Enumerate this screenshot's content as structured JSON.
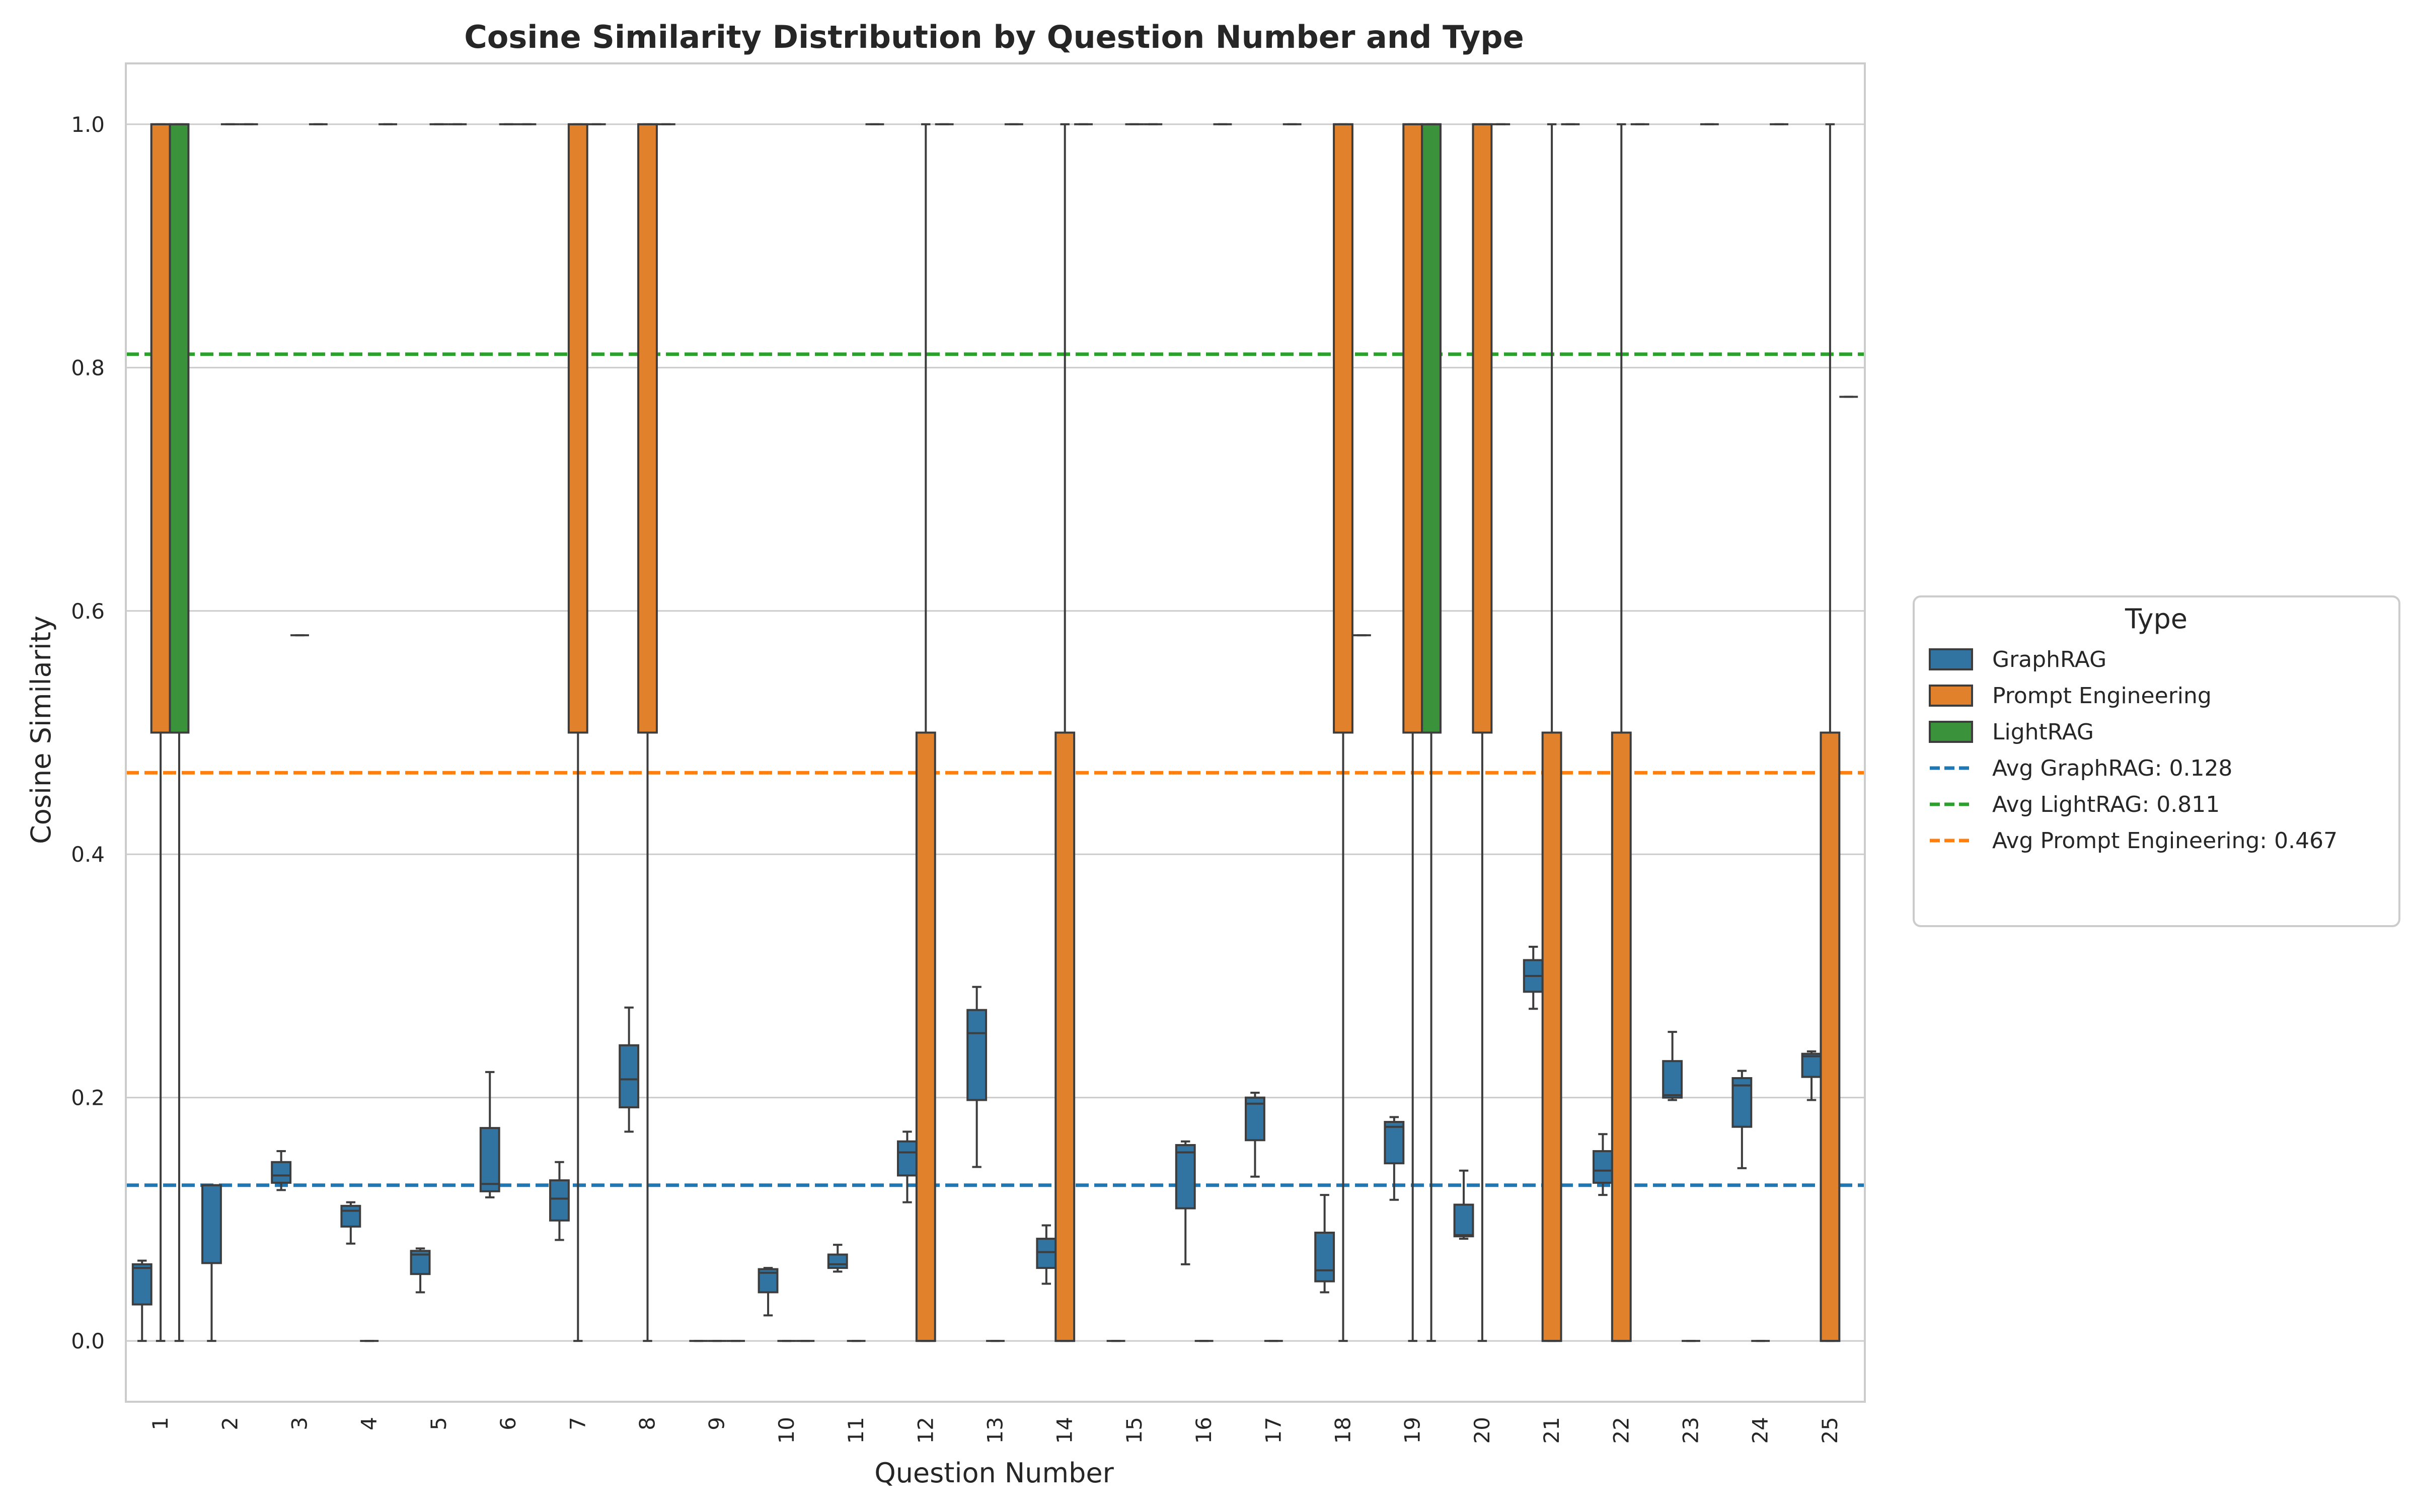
{
  "chart_data": {
    "type": "box",
    "title": "Cosine Similarity Distribution by Question Number and Type",
    "xlabel": "Question Number",
    "ylabel": "Cosine Similarity",
    "ylim": [
      -0.05,
      1.05
    ],
    "yticks": [
      0.0,
      0.2,
      0.4,
      0.6,
      0.8,
      1.0
    ],
    "ytick_labels": [
      "0.0",
      "0.2",
      "0.4",
      "0.6",
      "0.8",
      "1.0"
    ],
    "grid": true,
    "legend_placement": "right, outside plot area",
    "legend_title": "Type",
    "categories": [
      "1",
      "2",
      "3",
      "4",
      "5",
      "6",
      "7",
      "8",
      "9",
      "10",
      "11",
      "12",
      "13",
      "14",
      "15",
      "16",
      "17",
      "18",
      "19",
      "20",
      "21",
      "22",
      "23",
      "24",
      "25"
    ],
    "series": [
      {
        "name": "GraphRAG",
        "color": "#3274a1",
        "boxes": [
          {
            "whislo": 0.0,
            "q1": 0.03,
            "med": 0.06,
            "q3": 0.063,
            "whishi": 0.066
          },
          {
            "whislo": 0.0,
            "q1": 0.064,
            "med": 0.128,
            "q3": 0.128,
            "whishi": 0.128
          },
          {
            "whislo": 0.124,
            "q1": 0.13,
            "med": 0.136,
            "q3": 0.147,
            "whishi": 0.156
          },
          {
            "whislo": 0.08,
            "q1": 0.094,
            "med": 0.107,
            "q3": 0.111,
            "whishi": 0.114
          },
          {
            "whislo": 0.04,
            "q1": 0.055,
            "med": 0.071,
            "q3": 0.074,
            "whishi": 0.076
          },
          {
            "whislo": 0.118,
            "q1": 0.123,
            "med": 0.129,
            "q3": 0.175,
            "whishi": 0.221
          },
          {
            "whislo": 0.083,
            "q1": 0.099,
            "med": 0.117,
            "q3": 0.132,
            "whishi": 0.147
          },
          {
            "whislo": 0.172,
            "q1": 0.192,
            "med": 0.215,
            "q3": 0.243,
            "whishi": 0.274
          },
          {
            "whislo": 0.0,
            "q1": 0.0,
            "med": 0.0,
            "q3": 0.0,
            "whishi": 0.0
          },
          {
            "whislo": 0.021,
            "q1": 0.04,
            "med": 0.056,
            "q3": 0.059,
            "whishi": 0.06
          },
          {
            "whislo": 0.057,
            "q1": 0.06,
            "med": 0.063,
            "q3": 0.071,
            "whishi": 0.079
          },
          {
            "whislo": 0.114,
            "q1": 0.136,
            "med": 0.155,
            "q3": 0.164,
            "whishi": 0.172
          },
          {
            "whislo": 0.143,
            "q1": 0.198,
            "med": 0.253,
            "q3": 0.272,
            "whishi": 0.291
          },
          {
            "whislo": 0.047,
            "q1": 0.06,
            "med": 0.073,
            "q3": 0.084,
            "whishi": 0.095
          },
          {
            "whislo": 0.0,
            "q1": 0.0,
            "med": 0.0,
            "q3": 0.0,
            "whishi": 0.0
          },
          {
            "whislo": 0.063,
            "q1": 0.109,
            "med": 0.155,
            "q3": 0.161,
            "whishi": 0.164
          },
          {
            "whislo": 0.135,
            "q1": 0.165,
            "med": 0.195,
            "q3": 0.2,
            "whishi": 0.204
          },
          {
            "whislo": 0.04,
            "q1": 0.049,
            "med": 0.058,
            "q3": 0.089,
            "whishi": 0.12
          },
          {
            "whislo": 0.116,
            "q1": 0.146,
            "med": 0.176,
            "q3": 0.18,
            "whishi": 0.184
          },
          {
            "whislo": 0.084,
            "q1": 0.086,
            "med": 0.087,
            "q3": 0.112,
            "whishi": 0.14
          },
          {
            "whislo": 0.273,
            "q1": 0.287,
            "med": 0.3,
            "q3": 0.313,
            "whishi": 0.324
          },
          {
            "whislo": 0.12,
            "q1": 0.13,
            "med": 0.14,
            "q3": 0.156,
            "whishi": 0.17
          },
          {
            "whislo": 0.198,
            "q1": 0.2,
            "med": 0.202,
            "q3": 0.23,
            "whishi": 0.254
          },
          {
            "whislo": 0.142,
            "q1": 0.176,
            "med": 0.21,
            "q3": 0.216,
            "whishi": 0.222
          },
          {
            "whislo": 0.198,
            "q1": 0.217,
            "med": 0.234,
            "q3": 0.236,
            "whishi": 0.238
          }
        ]
      },
      {
        "name": "Prompt Engineering",
        "color": "#e1812c",
        "boxes": [
          {
            "whislo": 0.0,
            "q1": 0.5,
            "med": 1.0,
            "q3": 1.0,
            "whishi": 1.0
          },
          {
            "whislo": 1.0,
            "q1": 1.0,
            "med": 1.0,
            "q3": 1.0,
            "whishi": 1.0
          },
          {
            "whislo": 0.58,
            "q1": 0.58,
            "med": 0.58,
            "q3": 0.58,
            "whishi": 0.58
          },
          {
            "whislo": 0.0,
            "q1": 0.0,
            "med": 0.0,
            "q3": 0.0,
            "whishi": 0.0
          },
          {
            "whislo": 1.0,
            "q1": 1.0,
            "med": 1.0,
            "q3": 1.0,
            "whishi": 1.0
          },
          {
            "whislo": 1.0,
            "q1": 1.0,
            "med": 1.0,
            "q3": 1.0,
            "whishi": 1.0
          },
          {
            "whislo": 0.0,
            "q1": 0.5,
            "med": 1.0,
            "q3": 1.0,
            "whishi": 1.0
          },
          {
            "whislo": 0.0,
            "q1": 0.5,
            "med": 1.0,
            "q3": 1.0,
            "whishi": 1.0
          },
          {
            "whislo": 0.0,
            "q1": 0.0,
            "med": 0.0,
            "q3": 0.0,
            "whishi": 0.0
          },
          {
            "whislo": 0.0,
            "q1": 0.0,
            "med": 0.0,
            "q3": 0.0,
            "whishi": 0.0
          },
          {
            "whislo": 0.0,
            "q1": 0.0,
            "med": 0.0,
            "q3": 0.0,
            "whishi": 0.0
          },
          {
            "whislo": 0.0,
            "q1": 0.0,
            "med": 0.0,
            "q3": 0.5,
            "whishi": 1.0
          },
          {
            "whislo": 0.0,
            "q1": 0.0,
            "med": 0.0,
            "q3": 0.0,
            "whishi": 0.0
          },
          {
            "whislo": 0.0,
            "q1": 0.0,
            "med": 0.0,
            "q3": 0.5,
            "whishi": 1.0
          },
          {
            "whislo": 1.0,
            "q1": 1.0,
            "med": 1.0,
            "q3": 1.0,
            "whishi": 1.0
          },
          {
            "whislo": 0.0,
            "q1": 0.0,
            "med": 0.0,
            "q3": 0.0,
            "whishi": 0.0
          },
          {
            "whislo": 0.0,
            "q1": 0.0,
            "med": 0.0,
            "q3": 0.0,
            "whishi": 0.0
          },
          {
            "whislo": 0.0,
            "q1": 0.5,
            "med": 1.0,
            "q3": 1.0,
            "whishi": 1.0
          },
          {
            "whislo": 0.0,
            "q1": 0.5,
            "med": 1.0,
            "q3": 1.0,
            "whishi": 1.0
          },
          {
            "whislo": 0.0,
            "q1": 0.5,
            "med": 1.0,
            "q3": 1.0,
            "whishi": 1.0
          },
          {
            "whislo": 0.0,
            "q1": 0.0,
            "med": 0.0,
            "q3": 0.5,
            "whishi": 1.0
          },
          {
            "whislo": 0.0,
            "q1": 0.0,
            "med": 0.0,
            "q3": 0.5,
            "whishi": 1.0
          },
          {
            "whislo": 0.0,
            "q1": 0.0,
            "med": 0.0,
            "q3": 0.0,
            "whishi": 0.0
          },
          {
            "whislo": 0.0,
            "q1": 0.0,
            "med": 0.0,
            "q3": 0.0,
            "whishi": 0.0
          },
          {
            "whislo": 0.0,
            "q1": 0.0,
            "med": 0.0,
            "q3": 0.5,
            "whishi": 1.0
          }
        ]
      },
      {
        "name": "LightRAG",
        "color": "#3a923a",
        "boxes": [
          {
            "whislo": 0.0,
            "q1": 0.5,
            "med": 1.0,
            "q3": 1.0,
            "whishi": 1.0
          },
          {
            "whislo": 1.0,
            "q1": 1.0,
            "med": 1.0,
            "q3": 1.0,
            "whishi": 1.0
          },
          {
            "whislo": 1.0,
            "q1": 1.0,
            "med": 1.0,
            "q3": 1.0,
            "whishi": 1.0
          },
          {
            "whislo": 1.0,
            "q1": 1.0,
            "med": 1.0,
            "q3": 1.0,
            "whishi": 1.0
          },
          {
            "whislo": 1.0,
            "q1": 1.0,
            "med": 1.0,
            "q3": 1.0,
            "whishi": 1.0
          },
          {
            "whislo": 1.0,
            "q1": 1.0,
            "med": 1.0,
            "q3": 1.0,
            "whishi": 1.0
          },
          {
            "whislo": 1.0,
            "q1": 1.0,
            "med": 1.0,
            "q3": 1.0,
            "whishi": 1.0
          },
          {
            "whislo": 1.0,
            "q1": 1.0,
            "med": 1.0,
            "q3": 1.0,
            "whishi": 1.0
          },
          {
            "whislo": 0.0,
            "q1": 0.0,
            "med": 0.0,
            "q3": 0.0,
            "whishi": 0.0
          },
          {
            "whislo": 0.0,
            "q1": 0.0,
            "med": 0.0,
            "q3": 0.0,
            "whishi": 0.0
          },
          {
            "whislo": 1.0,
            "q1": 1.0,
            "med": 1.0,
            "q3": 1.0,
            "whishi": 1.0
          },
          {
            "whislo": 1.0,
            "q1": 1.0,
            "med": 1.0,
            "q3": 1.0,
            "whishi": 1.0
          },
          {
            "whislo": 1.0,
            "q1": 1.0,
            "med": 1.0,
            "q3": 1.0,
            "whishi": 1.0
          },
          {
            "whislo": 1.0,
            "q1": 1.0,
            "med": 1.0,
            "q3": 1.0,
            "whishi": 1.0
          },
          {
            "whislo": 1.0,
            "q1": 1.0,
            "med": 1.0,
            "q3": 1.0,
            "whishi": 1.0
          },
          {
            "whislo": 1.0,
            "q1": 1.0,
            "med": 1.0,
            "q3": 1.0,
            "whishi": 1.0
          },
          {
            "whislo": 1.0,
            "q1": 1.0,
            "med": 1.0,
            "q3": 1.0,
            "whishi": 1.0
          },
          {
            "whislo": 0.58,
            "q1": 0.58,
            "med": 0.58,
            "q3": 0.58,
            "whishi": 0.58
          },
          {
            "whislo": 0.0,
            "q1": 0.5,
            "med": 1.0,
            "q3": 1.0,
            "whishi": 1.0
          },
          {
            "whislo": 1.0,
            "q1": 1.0,
            "med": 1.0,
            "q3": 1.0,
            "whishi": 1.0
          },
          {
            "whislo": 1.0,
            "q1": 1.0,
            "med": 1.0,
            "q3": 1.0,
            "whishi": 1.0
          },
          {
            "whislo": 1.0,
            "q1": 1.0,
            "med": 1.0,
            "q3": 1.0,
            "whishi": 1.0
          },
          {
            "whislo": 1.0,
            "q1": 1.0,
            "med": 1.0,
            "q3": 1.0,
            "whishi": 1.0
          },
          {
            "whislo": 1.0,
            "q1": 1.0,
            "med": 1.0,
            "q3": 1.0,
            "whishi": 1.0
          },
          {
            "whislo": 0.776,
            "q1": 0.776,
            "med": 0.776,
            "q3": 0.776,
            "whishi": 0.776
          }
        ]
      }
    ],
    "reference_lines": [
      {
        "label": "Avg GraphRAG: 0.128",
        "value": 0.128,
        "color": "#1f77b4",
        "style": "dashed"
      },
      {
        "label": "Avg LightRAG: 0.811",
        "value": 0.811,
        "color": "#2ca02c",
        "style": "dashed"
      },
      {
        "label": "Avg Prompt Engineering: 0.467",
        "value": 0.467,
        "color": "#ff7f0e",
        "style": "dashed"
      }
    ]
  }
}
